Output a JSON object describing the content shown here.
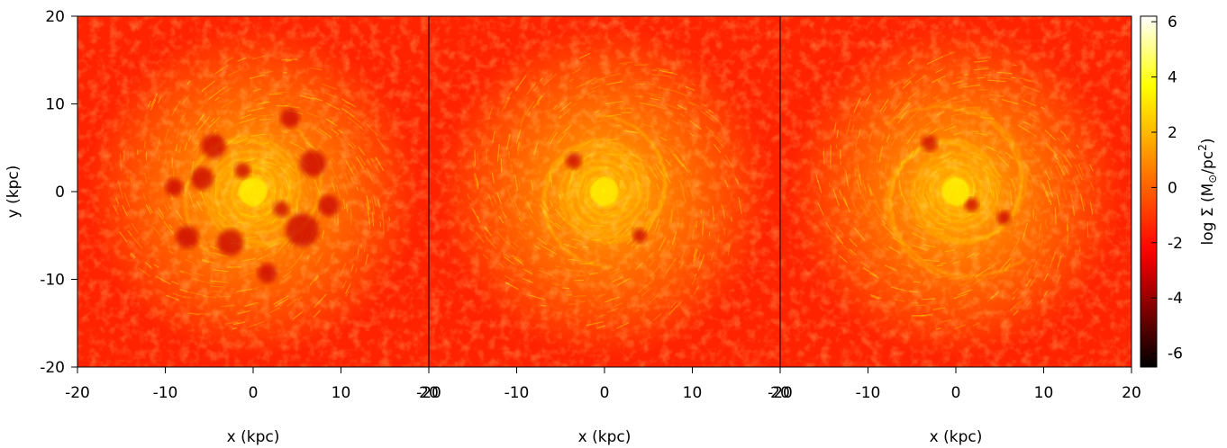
{
  "chart_data": {
    "type": "heatmap",
    "panels": [
      {
        "name": "",
        "xlabel": "x (kpc)",
        "ylabel": "y (kpc)",
        "xlim": [
          -20,
          20
        ],
        "ylim": [
          -20,
          20
        ],
        "xticks": [
          -20,
          -10,
          0,
          10,
          20
        ],
        "yticks": [
          -20,
          -10,
          0,
          10,
          20
        ],
        "spiral_arms": 2,
        "morphology": "flocculent spiral with dark holes in the inner disc",
        "voids": [
          {
            "x": -4.5,
            "y": 5.2,
            "r": 1.4
          },
          {
            "x": -5.8,
            "y": 1.5,
            "r": 1.3
          },
          {
            "x": 6.8,
            "y": 3.2,
            "r": 1.5
          },
          {
            "x": 4.2,
            "y": 8.4,
            "r": 1.1
          },
          {
            "x": -2.6,
            "y": -5.8,
            "r": 1.5
          },
          {
            "x": 5.6,
            "y": -4.4,
            "r": 1.9
          },
          {
            "x": -7.5,
            "y": -5.2,
            "r": 1.3
          },
          {
            "x": 1.6,
            "y": -9.3,
            "r": 1.1
          },
          {
            "x": -9.0,
            "y": 0.5,
            "r": 1.0
          },
          {
            "x": 8.6,
            "y": -1.6,
            "r": 1.2
          },
          {
            "x": -1.2,
            "y": 2.4,
            "r": 0.9
          },
          {
            "x": 3.2,
            "y": -2.0,
            "r": 0.9
          }
        ]
      },
      {
        "name": "",
        "xlabel": "x (kpc)",
        "xlim": [
          -20,
          20
        ],
        "ylim": [
          -20,
          20
        ],
        "xticks": [
          -20,
          -10,
          0,
          10,
          20
        ],
        "spiral_arms": 2,
        "morphology": "dense flocculent spiral",
        "voids": [
          {
            "x": -3.5,
            "y": 3.5,
            "r": 0.9
          },
          {
            "x": 4.0,
            "y": -5.0,
            "r": 0.8
          }
        ]
      },
      {
        "name": "",
        "xlabel": "x (kpc)",
        "xlim": [
          -20,
          20
        ],
        "ylim": [
          -20,
          20
        ],
        "xticks": [
          -20,
          -10,
          0,
          10,
          20
        ],
        "spiral_arms": 2,
        "morphology": "grand-design spiral with bright bar-like centre",
        "voids": [
          {
            "x": -3.0,
            "y": 5.5,
            "r": 0.9
          },
          {
            "x": 5.5,
            "y": -3.0,
            "r": 0.8
          },
          {
            "x": 1.8,
            "y": -1.5,
            "r": 0.8
          }
        ]
      }
    ],
    "colorbar": {
      "label_prefix": "log Σ (M",
      "label_sun": "⊙",
      "label_mid": "/pc",
      "label_sup": "2",
      "label_suffix": ")",
      "min": -6.5,
      "max": 6.2,
      "ticks": [
        6,
        4,
        2,
        0,
        -2,
        -4,
        -6
      ],
      "colormap": [
        "#000000",
        "#ff0000",
        "#ffff00",
        "#ffffff"
      ],
      "background_level": -1.5,
      "arm_level": 1.2
    }
  }
}
